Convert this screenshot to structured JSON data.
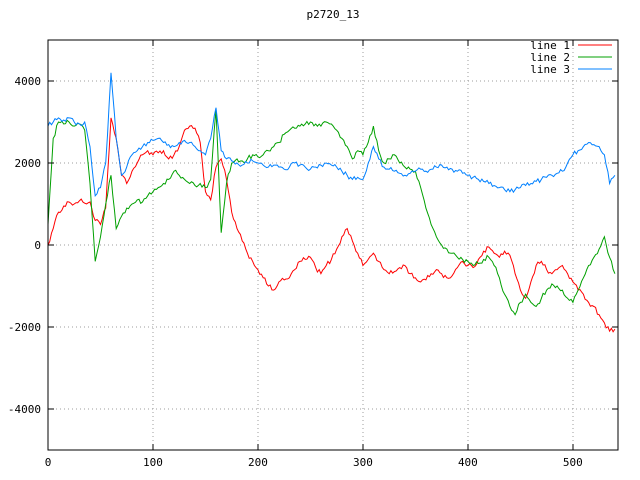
{
  "chart_data": {
    "type": "line",
    "title": "p2720_13",
    "xlabel": "",
    "ylabel": "",
    "xlim": [
      0,
      543
    ],
    "ylim": [
      -5000,
      5000
    ],
    "x_ticks": [
      0,
      100,
      200,
      300,
      400,
      500
    ],
    "y_ticks": [
      -4000,
      -2000,
      0,
      2000,
      4000
    ],
    "grid": true,
    "legend": {
      "position": "top-right-inside",
      "entries": [
        "line 1",
        "line 2",
        "line 3"
      ]
    },
    "x_start": 0,
    "x_step": 5,
    "noise_amplitude": 60,
    "colors": {
      "background": "#ffffff",
      "border": "#000000",
      "grid": "#9e9e9e",
      "text": "#000000"
    },
    "series": [
      {
        "name": "line 1",
        "color": "#ff0000",
        "values": [
          0,
          400,
          800,
          950,
          1050,
          1000,
          1080,
          1020,
          1050,
          600,
          500,
          900,
          3100,
          2600,
          1700,
          1500,
          1800,
          2000,
          2200,
          2300,
          2200,
          2250,
          2300,
          2100,
          2200,
          2400,
          2800,
          2900,
          2850,
          2500,
          1300,
          1100,
          1900,
          2100,
          1600,
          800,
          400,
          100,
          -200,
          -400,
          -600,
          -800,
          -1000,
          -1100,
          -900,
          -850,
          -800,
          -600,
          -400,
          -350,
          -300,
          -550,
          -700,
          -500,
          -350,
          -100,
          200,
          400,
          100,
          -200,
          -500,
          -350,
          -200,
          -400,
          -600,
          -700,
          -650,
          -550,
          -500,
          -700,
          -800,
          -900,
          -850,
          -700,
          -600,
          -700,
          -800,
          -750,
          -550,
          -400,
          -500,
          -550,
          -350,
          -150,
          -50,
          -200,
          -300,
          -150,
          -250,
          -700,
          -1100,
          -1300,
          -900,
          -500,
          -400,
          -600,
          -700,
          -600,
          -500,
          -700,
          -900,
          -1100,
          -1200,
          -1400,
          -1500,
          -1700,
          -1900,
          -2100,
          -2050
        ]
      },
      {
        "name": "line 2",
        "color": "#00a000",
        "values": [
          500,
          2600,
          3000,
          2950,
          3000,
          2900,
          2950,
          2800,
          1500,
          -400,
          200,
          1000,
          1700,
          400,
          700,
          900,
          1000,
          1100,
          1050,
          1200,
          1300,
          1400,
          1500,
          1600,
          1800,
          1700,
          1600,
          1500,
          1450,
          1500,
          1400,
          1600,
          3300,
          300,
          1500,
          2000,
          2100,
          2050,
          2100,
          2200,
          2150,
          2200,
          2300,
          2400,
          2500,
          2700,
          2800,
          2850,
          2900,
          2950,
          3000,
          2950,
          2900,
          3000,
          2950,
          2800,
          2600,
          2400,
          2100,
          2300,
          2200,
          2500,
          2900,
          2300,
          2000,
          2100,
          2200,
          2000,
          1900,
          1850,
          1800,
          1400,
          900,
          500,
          200,
          0,
          -100,
          -200,
          -300,
          -350,
          -400,
          -500,
          -450,
          -350,
          -300,
          -500,
          -800,
          -1200,
          -1500,
          -1700,
          -1400,
          -1200,
          -1400,
          -1500,
          -1300,
          -1100,
          -950,
          -1000,
          -1100,
          -1300,
          -1400,
          -1100,
          -800,
          -500,
          -300,
          -100,
          200,
          -300,
          -700
        ]
      },
      {
        "name": "line 3",
        "color": "#0080ff",
        "values": [
          2900,
          3000,
          3100,
          3050,
          3100,
          3000,
          2950,
          3000,
          2400,
          1200,
          1400,
          2000,
          4200,
          2600,
          1700,
          1900,
          2200,
          2300,
          2400,
          2500,
          2550,
          2600,
          2500,
          2450,
          2400,
          2500,
          2550,
          2500,
          2400,
          2300,
          2200,
          2600,
          3350,
          2300,
          2100,
          2050,
          2000,
          1950,
          2000,
          2050,
          2000,
          1950,
          1900,
          1950,
          1900,
          1850,
          1900,
          2000,
          1950,
          1900,
          1850,
          1900,
          1950,
          2000,
          1950,
          1900,
          1800,
          1700,
          1600,
          1650,
          1600,
          2000,
          2400,
          2100,
          1900,
          1850,
          1800,
          1750,
          1700,
          1750,
          1800,
          1850,
          1800,
          1850,
          1900,
          1950,
          1900,
          1850,
          1800,
          1750,
          1700,
          1650,
          1600,
          1550,
          1500,
          1450,
          1400,
          1350,
          1300,
          1350,
          1400,
          1450,
          1500,
          1550,
          1600,
          1650,
          1700,
          1750,
          1800,
          2000,
          2200,
          2300,
          2400,
          2500,
          2450,
          2400,
          2200,
          1500,
          1700
        ]
      }
    ]
  }
}
